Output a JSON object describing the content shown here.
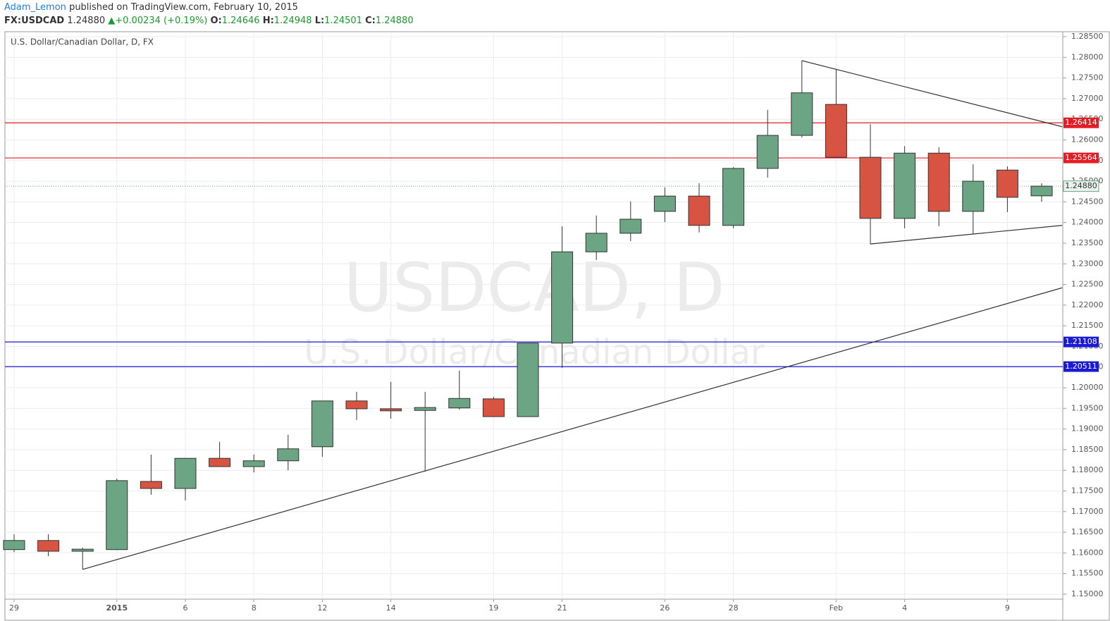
{
  "header": {
    "author": "Adam_Lemon",
    "published": "published on TradingView.com, February 10, 2015",
    "symbol": "FX:USDCAD",
    "price": "1.24880",
    "change": "+0.00234 (+0.19%)",
    "quote": [
      {
        "label": "O:",
        "value": "1.24646"
      },
      {
        "label": "H:",
        "value": "1.24948"
      },
      {
        "label": "L:",
        "value": "1.24501"
      },
      {
        "label": "C:",
        "value": "1.24880"
      }
    ]
  },
  "chart_data": {
    "type": "candlestick",
    "subtitle": "U.S. Dollar/Canadian Dollar, D, FX",
    "watermark": [
      "USDCAD, D",
      "U.S. Dollar/Canadian Dollar"
    ],
    "categories": [
      "29",
      null,
      null,
      "2015",
      null,
      "6",
      null,
      "8",
      null,
      "12",
      null,
      "14",
      null,
      null,
      "19",
      null,
      "21",
      null,
      null,
      "26",
      null,
      "28",
      null,
      null,
      "Feb",
      null,
      "4",
      null,
      null,
      "9",
      null
    ],
    "open": [
      1.1608,
      1.163,
      1.1604,
      1.1608,
      1.1773,
      1.1756,
      1.1829,
      1.1809,
      1.1823,
      1.1857,
      1.1968,
      1.1949,
      1.1945,
      1.1951,
      1.1973,
      1.193,
      1.2108,
      1.2329,
      1.2374,
      1.2427,
      1.2464,
      1.2393,
      1.2531,
      1.2611,
      1.2686,
      1.2558,
      1.241,
      1.2568,
      1.2427,
      1.2527,
      1.24646
    ],
    "high": [
      1.1645,
      1.1645,
      1.1613,
      1.178,
      1.1838,
      1.183,
      1.1869,
      1.1838,
      1.1886,
      1.1968,
      1.199,
      1.2014,
      1.199,
      1.2041,
      1.1978,
      1.2108,
      1.2391,
      1.2417,
      1.2451,
      1.2485,
      1.2495,
      1.2534,
      1.2673,
      1.2792,
      1.2772,
      1.2638,
      1.2585,
      1.2582,
      1.2541,
      1.2536,
      1.24948
    ],
    "low": [
      1.1602,
      1.1592,
      1.156,
      1.1607,
      1.1741,
      1.1727,
      1.1808,
      1.1795,
      1.18,
      1.1833,
      1.1922,
      1.1925,
      1.1797,
      1.1947,
      1.193,
      1.193,
      1.2048,
      1.2309,
      1.2355,
      1.2401,
      1.2376,
      1.2386,
      1.2509,
      1.2606,
      1.2558,
      1.2348,
      1.2386,
      1.2391,
      1.2372,
      1.2425,
      1.24501
    ],
    "close": [
      1.163,
      1.1604,
      1.1609,
      1.1775,
      1.1756,
      1.1829,
      1.1809,
      1.1823,
      1.1852,
      1.1968,
      1.1949,
      1.1944,
      1.1952,
      1.1974,
      1.193,
      1.2108,
      1.2329,
      1.2374,
      1.2408,
      1.2464,
      1.2393,
      1.2531,
      1.2611,
      1.2714,
      1.2558,
      1.241,
      1.2568,
      1.2427,
      1.25,
      1.2461,
      1.2488
    ],
    "up_color": "#6ba583",
    "down_color": "#d75442",
    "ylim": [
      1.1488,
      1.2862
    ],
    "yticks": [
      {
        "value": 1.15,
        "label": "1.15000"
      },
      {
        "value": 1.155,
        "label": "1.15500"
      },
      {
        "value": 1.16,
        "label": "1.16000"
      },
      {
        "value": 1.165,
        "label": "1.16500"
      },
      {
        "value": 1.17,
        "label": "1.17000"
      },
      {
        "value": 1.175,
        "label": "1.17500"
      },
      {
        "value": 1.18,
        "label": "1.18000"
      },
      {
        "value": 1.185,
        "label": "1.18500"
      },
      {
        "value": 1.19,
        "label": "1.19000"
      },
      {
        "value": 1.195,
        "label": "1.19500"
      },
      {
        "value": 1.2,
        "label": "1.20000"
      },
      {
        "value": 1.205,
        "label": "1.20500"
      },
      {
        "value": 1.21,
        "label": "1.21000"
      },
      {
        "value": 1.215,
        "label": "1.21500"
      },
      {
        "value": 1.22,
        "label": "1.22000"
      },
      {
        "value": 1.225,
        "label": "1.22500"
      },
      {
        "value": 1.23,
        "label": "1.23000"
      },
      {
        "value": 1.235,
        "label": "1.23500"
      },
      {
        "value": 1.24,
        "label": "1.24000"
      },
      {
        "value": 1.245,
        "label": "1.24500"
      },
      {
        "value": 1.25,
        "label": "1.25000"
      },
      {
        "value": 1.255,
        "label": "1.25500"
      },
      {
        "value": 1.26,
        "label": "1.26000"
      },
      {
        "value": 1.265,
        "label": "1.26500"
      },
      {
        "value": 1.27,
        "label": "1.27000"
      },
      {
        "value": 1.275,
        "label": "1.27500"
      },
      {
        "value": 1.28,
        "label": "1.28000"
      },
      {
        "value": 1.285,
        "label": "1.28500"
      }
    ],
    "grid": true,
    "levels": [
      {
        "value": 1.26414,
        "color": "#e51c23"
      },
      {
        "value": 1.25564,
        "color": "#e51c23"
      },
      {
        "value": 1.21108,
        "color": "#1a1ad6"
      },
      {
        "value": 1.20511,
        "color": "#1a1ad6"
      }
    ],
    "last_price": {
      "value": 1.2488,
      "label": "1.24880",
      "color": "#6ba583"
    },
    "trend_lines": [
      {
        "x": [
          23,
          30.6
        ],
        "y": [
          1.2792,
          1.2632
        ]
      },
      {
        "x": [
          25,
          30.6
        ],
        "y": [
          1.2348,
          1.2393
        ]
      },
      {
        "x": [
          2,
          30.6
        ],
        "y": [
          1.156,
          1.2242
        ]
      }
    ]
  }
}
